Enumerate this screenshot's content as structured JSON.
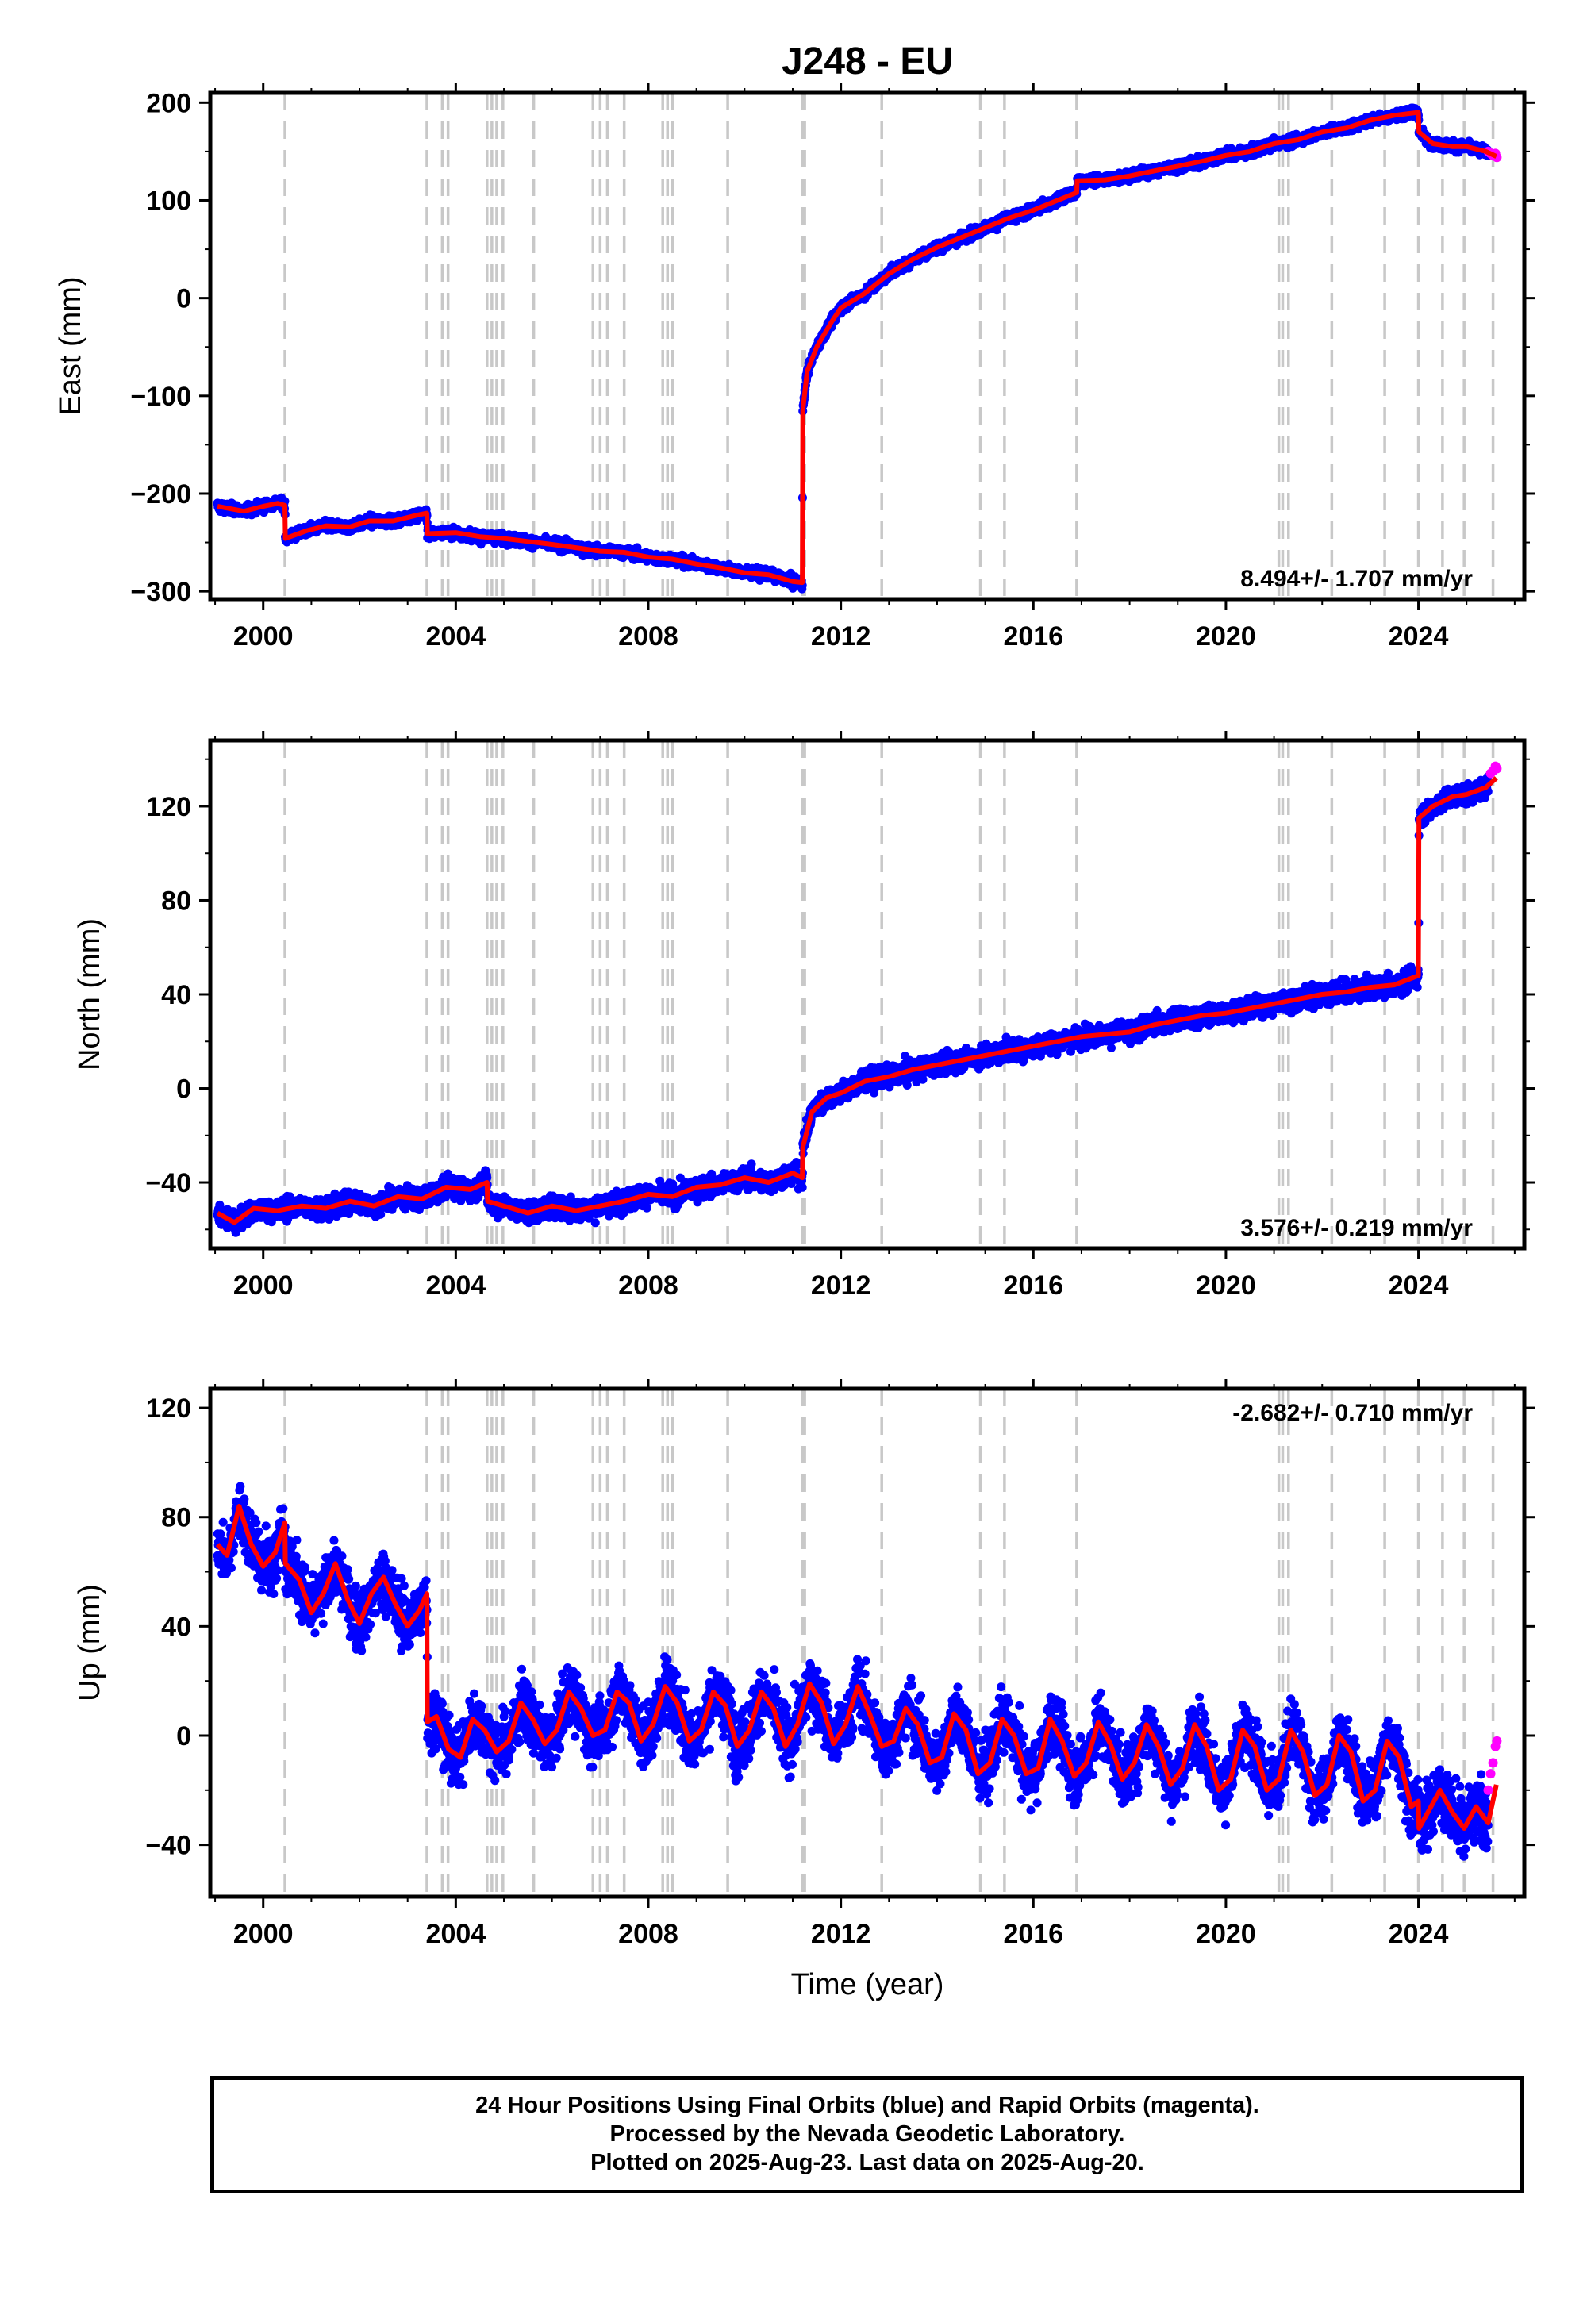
{
  "title": "J248 - EU",
  "xlabel": "Time (year)",
  "footer": {
    "line1": "24 Hour Positions Using Final Orbits (blue) and Rapid Orbits (magenta).",
    "line2": "Processed by the Nevada Geodetic Laboratory.",
    "line3": "Plotted on 2025-Aug-23. Last data on 2025-Aug-20."
  },
  "colors": {
    "final_orbits": "#0000ff",
    "rapid_orbits": "#ff00ff",
    "model": "#ff0000",
    "event_lines": "#c8c8c8"
  },
  "chart_data": [
    {
      "type": "scatter",
      "panel": "east",
      "ylabel": "East (mm)",
      "rate": "8.494+/- 1.707 mm/yr",
      "rate_position": "bottom-right",
      "xlim": [
        1998.9,
        2026.2
      ],
      "ylim": [
        -308,
        210
      ],
      "xticks": [
        2000,
        2004,
        2008,
        2012,
        2016,
        2020,
        2024
      ],
      "xtick_labels": [
        "2000",
        "2004",
        "2008",
        "2012",
        "2016",
        "2020",
        "2024"
      ],
      "yticks": [
        -300,
        -200,
        -100,
        0,
        100,
        200
      ],
      "ytick_labels": [
        "−300",
        "−200",
        "−100",
        "0",
        "100",
        "200"
      ],
      "event_lines": [
        2000.45,
        2003.4,
        2003.72,
        2003.84,
        2004.65,
        2004.75,
        2004.85,
        2004.98,
        2005.62,
        2006.85,
        2007.0,
        2007.15,
        2007.5,
        2008.3,
        2008.4,
        2008.5,
        2009.65,
        2011.2,
        2011.25,
        2012.85,
        2014.9,
        2015.4,
        2016.9,
        2021.1,
        2021.18,
        2021.3,
        2022.2,
        2023.3,
        2024.0,
        2024.5,
        2024.95,
        2025.55
      ],
      "model": {
        "x": [
          1999.05,
          1999.6,
          2000.0,
          2000.3,
          2000.45,
          2000.46,
          2000.9,
          2001.3,
          2001.8,
          2002.2,
          2002.7,
          2003.2,
          2003.4,
          2003.41,
          2004.0,
          2004.5,
          2005.0,
          2005.5,
          2006.0,
          2006.6,
          2007.0,
          2007.5,
          2008.0,
          2008.5,
          2009.0,
          2009.5,
          2010.0,
          2010.5,
          2011.0,
          2011.2,
          2011.21,
          2011.3,
          2011.5,
          2011.8,
          2012.0,
          2012.5,
          2013.0,
          2013.5,
          2014.0,
          2014.5,
          2015.0,
          2015.5,
          2016.0,
          2016.5,
          2016.9,
          2016.91,
          2017.5,
          2018.0,
          2018.5,
          2019.0,
          2019.5,
          2020.0,
          2020.5,
          2021.0,
          2021.5,
          2022.0,
          2022.5,
          2023.0,
          2023.5,
          2024.0,
          2024.01,
          2024.3,
          2024.7,
          2025.0,
          2025.4,
          2025.62
        ],
        "y": [
          -213,
          -218,
          -213,
          -210,
          -212,
          -246,
          -238,
          -233,
          -234,
          -228,
          -228,
          -222,
          -220,
          -241,
          -240,
          -244,
          -246,
          -249,
          -252,
          -256,
          -259,
          -260,
          -265,
          -267,
          -272,
          -276,
          -281,
          -283,
          -290,
          -291,
          -115,
          -75,
          -50,
          -25,
          -10,
          5,
          25,
          40,
          52,
          62,
          72,
          82,
          90,
          100,
          108,
          120,
          121,
          125,
          130,
          135,
          140,
          146,
          150,
          158,
          162,
          170,
          174,
          182,
          187,
          190,
          170,
          158,
          155,
          155,
          150,
          145
        ]
      },
      "rapid": {
        "x": [
          2025.45,
          2025.5,
          2025.55,
          2025.6,
          2025.63
        ],
        "y": [
          150,
          148,
          146,
          148,
          144
        ]
      }
    },
    {
      "type": "scatter",
      "panel": "north",
      "ylabel": "North (mm)",
      "rate": "3.576+/- 0.219 mm/yr",
      "rate_position": "bottom-right",
      "xlim": [
        1998.9,
        2026.2
      ],
      "ylim": [
        -68,
        148
      ],
      "xticks": [
        2000,
        2004,
        2008,
        2012,
        2016,
        2020,
        2024
      ],
      "xtick_labels": [
        "2000",
        "2004",
        "2008",
        "2012",
        "2016",
        "2020",
        "2024"
      ],
      "yticks": [
        -40,
        0,
        40,
        80,
        120
      ],
      "ytick_labels": [
        "−40",
        "0",
        "40",
        "80",
        "120"
      ],
      "event_lines": [
        2000.45,
        2003.4,
        2003.72,
        2003.84,
        2004.65,
        2004.75,
        2004.85,
        2004.98,
        2005.62,
        2006.85,
        2007.0,
        2007.15,
        2007.5,
        2008.3,
        2008.4,
        2008.5,
        2009.65,
        2011.2,
        2011.25,
        2012.85,
        2014.9,
        2015.4,
        2016.9,
        2021.1,
        2021.18,
        2021.3,
        2022.2,
        2023.3,
        2024.0,
        2024.5,
        2024.95,
        2025.55
      ],
      "model": {
        "x": [
          1999.05,
          1999.4,
          1999.8,
          2000.3,
          2000.8,
          2001.3,
          2001.8,
          2002.3,
          2002.8,
          2003.3,
          2003.8,
          2004.3,
          2004.65,
          2004.66,
          2005.0,
          2005.5,
          2006.0,
          2006.5,
          2007.0,
          2007.5,
          2008.0,
          2008.5,
          2009.0,
          2009.5,
          2010.0,
          2010.5,
          2011.0,
          2011.2,
          2011.21,
          2011.4,
          2011.7,
          2012.0,
          2012.5,
          2013.0,
          2013.5,
          2014.0,
          2014.5,
          2015.0,
          2015.5,
          2016.0,
          2016.5,
          2017.0,
          2017.5,
          2018.0,
          2018.5,
          2019.0,
          2019.5,
          2020.0,
          2020.5,
          2021.0,
          2021.5,
          2022.0,
          2022.5,
          2023.0,
          2023.5,
          2024.0,
          2024.01,
          2024.3,
          2024.7,
          2025.0,
          2025.4,
          2025.62
        ],
        "y": [
          -53,
          -57,
          -51,
          -52,
          -50,
          -51,
          -48,
          -50,
          -46,
          -47,
          -42,
          -43,
          -40,
          -48,
          -50,
          -53,
          -50,
          -52,
          -50,
          -48,
          -45,
          -46,
          -42,
          -41,
          -38,
          -40,
          -36,
          -38,
          -25,
          -10,
          -4,
          -2,
          3,
          5,
          8,
          10,
          12,
          14,
          16,
          18,
          20,
          22,
          23,
          24,
          27,
          29,
          31,
          32,
          34,
          36,
          38,
          40,
          41,
          43,
          44,
          48,
          115,
          120,
          124,
          125,
          128,
          132
        ]
      },
      "rapid": {
        "x": [
          2025.5,
          2025.55,
          2025.6,
          2025.63
        ],
        "y": [
          134,
          135,
          137,
          136
        ]
      }
    },
    {
      "type": "scatter",
      "panel": "up",
      "ylabel": "Up (mm)",
      "xlabel": "Time (year)",
      "rate": "-2.682+/- 0.710 mm/yr",
      "rate_position": "top-right",
      "xlim": [
        1998.9,
        2026.2
      ],
      "ylim": [
        -59,
        127
      ],
      "xticks": [
        2000,
        2004,
        2008,
        2012,
        2016,
        2020,
        2024
      ],
      "xtick_labels": [
        "2000",
        "2004",
        "2008",
        "2012",
        "2016",
        "2020",
        "2024"
      ],
      "yticks": [
        -40,
        0,
        40,
        80,
        120
      ],
      "ytick_labels": [
        "−40",
        "0",
        "40",
        "80",
        "120"
      ],
      "event_lines": [
        2000.45,
        2003.4,
        2003.72,
        2003.84,
        2004.65,
        2004.75,
        2004.85,
        2004.98,
        2005.62,
        2006.85,
        2007.0,
        2007.15,
        2007.5,
        2008.3,
        2008.4,
        2008.5,
        2009.65,
        2011.2,
        2011.25,
        2012.85,
        2014.9,
        2015.4,
        2016.9,
        2021.1,
        2021.18,
        2021.3,
        2022.2,
        2023.3,
        2024.0,
        2024.5,
        2024.95,
        2025.55
      ],
      "model": {
        "x": [
          1999.05,
          1999.25,
          1999.5,
          1999.75,
          2000.0,
          2000.25,
          2000.45,
          2000.46,
          2000.75,
          2001.0,
          2001.25,
          2001.5,
          2001.75,
          2002.0,
          2002.25,
          2002.5,
          2002.75,
          2003.0,
          2003.25,
          2003.4,
          2003.41,
          2003.6,
          2003.85,
          2004.1,
          2004.35,
          2004.6,
          2004.85,
          2005.1,
          2005.35,
          2005.6,
          2005.85,
          2006.1,
          2006.35,
          2006.6,
          2006.85,
          2007.1,
          2007.35,
          2007.6,
          2007.85,
          2008.1,
          2008.35,
          2008.6,
          2008.85,
          2009.1,
          2009.35,
          2009.6,
          2009.85,
          2010.1,
          2010.35,
          2010.6,
          2010.85,
          2011.1,
          2011.35,
          2011.6,
          2011.85,
          2012.1,
          2012.35,
          2012.6,
          2012.85,
          2013.1,
          2013.35,
          2013.6,
          2013.85,
          2014.1,
          2014.35,
          2014.6,
          2014.85,
          2015.1,
          2015.35,
          2015.6,
          2015.85,
          2016.1,
          2016.35,
          2016.6,
          2016.85,
          2017.1,
          2017.35,
          2017.6,
          2017.85,
          2018.1,
          2018.35,
          2018.6,
          2018.85,
          2019.1,
          2019.35,
          2019.6,
          2019.85,
          2020.1,
          2020.35,
          2020.6,
          2020.85,
          2021.1,
          2021.35,
          2021.6,
          2021.85,
          2022.1,
          2022.35,
          2022.6,
          2022.85,
          2023.1,
          2023.35,
          2023.6,
          2023.85,
          2024.0,
          2024.01,
          2024.2,
          2024.45,
          2024.7,
          2024.95,
          2025.2,
          2025.45,
          2025.62
        ],
        "y": [
          70,
          66,
          84,
          70,
          62,
          67,
          78,
          63,
          57,
          45,
          52,
          63,
          50,
          41,
          52,
          58,
          48,
          40,
          46,
          52,
          5,
          7,
          -5,
          -8,
          6,
          2,
          -6,
          -2,
          12,
          6,
          -3,
          2,
          16,
          10,
          0,
          2,
          16,
          12,
          -2,
          4,
          18,
          12,
          -2,
          2,
          16,
          11,
          -4,
          2,
          16,
          10,
          -4,
          4,
          19,
          12,
          -3,
          4,
          18,
          8,
          -4,
          -2,
          10,
          4,
          -10,
          -8,
          8,
          2,
          -14,
          -10,
          6,
          0,
          -14,
          -12,
          6,
          -2,
          -15,
          -10,
          5,
          -3,
          -16,
          -10,
          4,
          -4,
          -18,
          -12,
          4,
          -4,
          -20,
          -16,
          2,
          -4,
          -20,
          -16,
          2,
          -6,
          -22,
          -18,
          0,
          -6,
          -24,
          -20,
          -2,
          -8,
          -26,
          -24,
          -34,
          -28,
          -20,
          -28,
          -34,
          -26,
          -32,
          -18
        ]
      },
      "rapid": {
        "x": [
          2025.45,
          2025.5,
          2025.55,
          2025.6,
          2025.63
        ],
        "y": [
          -20,
          -14,
          -10,
          -4,
          -2
        ]
      }
    }
  ]
}
